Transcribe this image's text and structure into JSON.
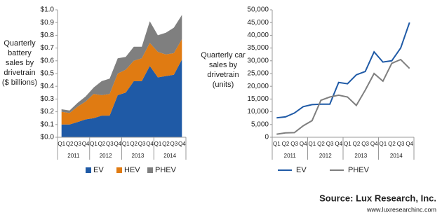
{
  "chart_data": [
    {
      "type": "stacked_area",
      "y_label": "Quarterly battery sales by drivetrain ($ billions)",
      "categories": [
        "Q1",
        "Q2",
        "Q3",
        "Q4",
        "Q1",
        "Q2",
        "Q3",
        "Q4",
        "Q1",
        "Q2",
        "Q3",
        "Q4",
        "Q1",
        "Q2",
        "Q3",
        "Q4"
      ],
      "x_groups": [
        "2011",
        "2012",
        "2013",
        "2014"
      ],
      "series": [
        {
          "name": "EV",
          "color": "#1f5aa6",
          "values": [
            0.1,
            0.1,
            0.12,
            0.14,
            0.15,
            0.17,
            0.17,
            0.33,
            0.35,
            0.44,
            0.44,
            0.56,
            0.47,
            0.48,
            0.49,
            0.61
          ]
        },
        {
          "name": "HEV",
          "color": "#e07b12",
          "values": [
            0.1,
            0.09,
            0.12,
            0.14,
            0.19,
            0.16,
            0.17,
            0.17,
            0.18,
            0.16,
            0.18,
            0.18,
            0.2,
            0.17,
            0.17,
            0.16
          ]
        },
        {
          "name": "PHEV",
          "color": "#7f7f7f",
          "values": [
            0.02,
            0.02,
            0.03,
            0.04,
            0.05,
            0.11,
            0.12,
            0.12,
            0.1,
            0.11,
            0.09,
            0.17,
            0.13,
            0.17,
            0.2,
            0.19
          ]
        }
      ],
      "ylim": [
        0,
        1
      ],
      "yticks": [
        {
          "value": 0,
          "label": "$0.0"
        },
        {
          "value": 0.1,
          "label": "$0.1"
        },
        {
          "value": 0.2,
          "label": "$0.2"
        },
        {
          "value": 0.3,
          "label": "$0.3"
        },
        {
          "value": 0.4,
          "label": "$0.4"
        },
        {
          "value": 0.5,
          "label": "$0.5"
        },
        {
          "value": 0.6,
          "label": "$0.6"
        },
        {
          "value": 0.7,
          "label": "$0.7"
        },
        {
          "value": 0.8,
          "label": "$0.8"
        },
        {
          "value": 0.9,
          "label": "$0.9"
        },
        {
          "value": 1,
          "label": "$1.0"
        }
      ],
      "grid": false,
      "legend": "bottom"
    },
    {
      "type": "line",
      "y_label": "Quarterly car sales by drivetrain (units)",
      "categories": [
        "Q1",
        "Q2",
        "Q3",
        "Q4",
        "Q1",
        "Q2",
        "Q3",
        "Q4",
        "Q1",
        "Q2",
        "Q3",
        "Q4",
        "Q1",
        "Q2",
        "Q3",
        "Q4"
      ],
      "x_groups": [
        "2011",
        "2012",
        "2013",
        "2014"
      ],
      "series": [
        {
          "name": "EV",
          "color": "#1f5aa6",
          "values": [
            7600,
            8000,
            9500,
            12000,
            12800,
            13000,
            13000,
            21500,
            21000,
            24500,
            25800,
            33500,
            29500,
            30000,
            35000,
            45000
          ]
        },
        {
          "name": "PHEV",
          "color": "#7f7f7f",
          "values": [
            1200,
            1700,
            1800,
            4500,
            6500,
            14500,
            15800,
            16500,
            15800,
            12500,
            18500,
            25000,
            22000,
            29000,
            30500,
            27000
          ]
        }
      ],
      "ylim": [
        0,
        50000
      ],
      "yticks": [
        0,
        {
          "value": 5000,
          "label": "5,000"
        },
        {
          "value": 10000,
          "label": "10,000"
        },
        {
          "value": 15000,
          "label": "15,000"
        },
        {
          "value": 20000,
          "label": "20,000"
        },
        {
          "value": 25000,
          "label": "25,000"
        },
        {
          "value": 30000,
          "label": "30,000"
        },
        {
          "value": 35000,
          "label": "35,000"
        },
        {
          "value": 40000,
          "label": "40,000"
        },
        {
          "value": 45000,
          "label": "45,000"
        },
        {
          "value": 50000,
          "label": "50,000"
        }
      ],
      "grid": false,
      "legend": "bottom"
    }
  ],
  "source": "Source: Lux Research, Inc.",
  "source_url": "www.luxresearchinc.com"
}
